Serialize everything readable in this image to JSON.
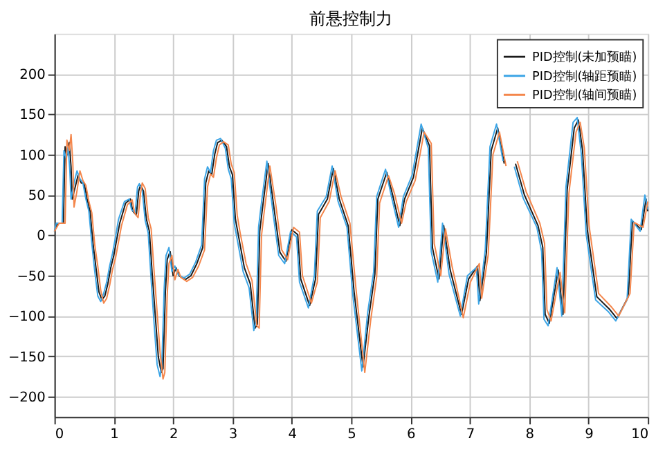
{
  "chart_data": {
    "type": "line",
    "title": "前悬控制力",
    "xlim": [
      0,
      10
    ],
    "ylim": [
      -225,
      250
    ],
    "xticks": [
      0,
      1,
      2,
      3,
      4,
      5,
      6,
      7,
      8,
      9,
      10
    ],
    "yticks": [
      -200,
      -150,
      -100,
      -50,
      0,
      50,
      100,
      150,
      200
    ],
    "grid": true,
    "legend": "top right",
    "line_style": "solid",
    "marker": "none",
    "series": [
      {
        "name": "PID控制(未加预瞄)",
        "color": "#1a1a1a",
        "x": [
          0,
          0.05,
          0.15,
          0.18,
          0.22,
          0.25,
          0.28,
          0.3,
          0.35,
          0.4,
          0.45,
          0.5,
          0.55,
          0.6,
          0.65,
          0.7,
          0.75,
          0.8,
          0.85,
          0.9,
          0.95,
          1.0,
          1.05,
          1.1,
          1.2,
          1.28,
          1.32,
          1.38,
          1.42,
          1.45,
          1.5,
          1.55,
          1.6,
          1.65,
          1.7,
          1.75,
          1.8,
          1.83,
          1.87,
          1.9,
          1.95,
          2.0,
          2.05,
          2.1,
          2.2,
          2.3,
          2.4,
          2.5,
          2.55,
          2.6,
          2.65,
          2.7,
          2.75,
          2.82,
          2.9,
          2.95,
          3.0,
          3.05,
          3.1,
          3.2,
          3.3,
          3.38,
          3.42,
          3.46,
          3.5,
          3.6,
          3.7,
          3.8,
          3.9,
          4.0,
          4.1,
          4.15,
          4.3,
          4.4,
          4.45,
          4.6,
          4.7,
          4.8,
          4.95,
          5.05,
          5.2,
          5.3,
          5.4,
          5.45,
          5.6,
          5.7,
          5.82,
          5.9,
          6.05,
          6.2,
          6.32,
          6.37,
          6.48,
          6.56,
          6.67,
          6.86,
          6.98,
          7.13,
          7.17,
          7.28,
          7.36,
          7.47,
          7.58,
          7.66,
          7.7,
          7.77,
          7.92,
          8.15,
          8.23,
          8.27,
          8.34,
          8.49,
          8.57,
          8.64,
          8.76,
          8.83,
          8.9,
          8.98,
          9.14,
          9.36,
          9.48,
          9.67,
          9.74,
          9.89,
          9.97,
          10
        ],
        "values": [
          5,
          15,
          15,
          110,
          100,
          115,
          85,
          45,
          60,
          75,
          65,
          65,
          45,
          30,
          -10,
          -40,
          -70,
          -80,
          -75,
          -60,
          -40,
          -25,
          -5,
          15,
          40,
          45,
          30,
          25,
          55,
          62,
          55,
          20,
          5,
          -50,
          -100,
          -150,
          -170,
          -165,
          -70,
          -30,
          -20,
          -50,
          -40,
          -50,
          -55,
          -50,
          -35,
          -15,
          65,
          80,
          75,
          100,
          115,
          118,
          110,
          85,
          75,
          20,
          0,
          -40,
          -60,
          -115,
          -110,
          5,
          30,
          89,
          34,
          -21,
          -32,
          7,
          1,
          -54,
          -87,
          -54,
          26,
          45,
          83,
          45,
          12,
          -70,
          -163,
          -100,
          -48,
          45,
          78,
          50,
          12,
          45,
          72,
          133,
          111,
          -15,
          -54,
          12,
          -43,
          -98,
          -54,
          -38,
          -81,
          -21,
          105,
          133,
          89,
          null,
          null,
          89,
          50,
          12,
          -15,
          -98,
          -109,
          -43,
          -98,
          56,
          133,
          143,
          105,
          7,
          -76,
          -92,
          -103,
          -76,
          18,
          7,
          45,
          30
        ]
      },
      {
        "name": "PID控制(轴距预瞄)",
        "color": "#3ca5e6",
        "x": [
          0,
          0.03,
          0.13,
          0.16,
          0.2,
          0.23,
          0.26,
          0.28,
          0.33,
          0.38,
          0.43,
          0.48,
          0.53,
          0.58,
          0.63,
          0.68,
          0.73,
          0.78,
          0.83,
          0.88,
          0.93,
          0.98,
          1.03,
          1.08,
          1.18,
          1.26,
          1.3,
          1.36,
          1.4,
          1.43,
          1.48,
          1.53,
          1.58,
          1.63,
          1.68,
          1.73,
          1.78,
          1.81,
          1.85,
          1.88,
          1.93,
          1.98,
          2.03,
          2.08,
          2.18,
          2.28,
          2.38,
          2.48,
          2.53,
          2.58,
          2.63,
          2.68,
          2.73,
          2.8,
          2.88,
          2.93,
          2.98,
          3.03,
          3.08,
          3.18,
          3.28,
          3.36,
          3.4,
          3.44,
          3.48,
          3.58,
          3.68,
          3.78,
          3.88,
          3.98,
          4.08,
          4.13,
          4.28,
          4.38,
          4.43,
          4.58,
          4.68,
          4.78,
          4.93,
          5.03,
          5.18,
          5.28,
          5.38,
          5.43,
          5.58,
          5.68,
          5.8,
          5.88,
          6.03,
          6.18,
          6.3,
          6.35,
          6.46,
          6.54,
          6.65,
          6.84,
          6.96,
          7.11,
          7.15,
          7.26,
          7.34,
          7.45,
          7.56,
          7.64,
          7.68,
          7.75,
          7.9,
          8.13,
          8.21,
          8.25,
          8.32,
          8.47,
          8.55,
          8.62,
          8.74,
          8.81,
          8.88,
          8.96,
          9.12,
          9.34,
          9.46,
          9.65,
          9.72,
          9.87,
          9.95,
          10
        ],
        "values": [
          5,
          15,
          15,
          105,
          95,
          110,
          80,
          45,
          65,
          80,
          70,
          65,
          45,
          30,
          -10,
          -45,
          -75,
          -82,
          -72,
          -58,
          -38,
          -22,
          -2,
          20,
          42,
          45,
          32,
          28,
          60,
          64,
          55,
          18,
          3,
          -55,
          -110,
          -160,
          -175,
          -160,
          -65,
          -25,
          -15,
          -45,
          -38,
          -48,
          -53,
          -48,
          -33,
          -12,
          70,
          85,
          78,
          105,
          118,
          120,
          108,
          82,
          70,
          15,
          -5,
          -45,
          -65,
          -118,
          -105,
          10,
          35,
          92,
          30,
          -25,
          -35,
          5,
          -2,
          -58,
          -90,
          -50,
          30,
          48,
          86,
          42,
          10,
          -75,
          -168,
          -95,
          -45,
          48,
          82,
          48,
          10,
          48,
          75,
          138,
          108,
          -20,
          -58,
          15,
          -48,
          -100,
          -50,
          -40,
          -85,
          -18,
          110,
          138,
          92,
          null,
          null,
          85,
          46,
          10,
          -20,
          -104,
          -112,
          -40,
          -100,
          60,
          140,
          146,
          100,
          2,
          -80,
          -95,
          -106,
          -80,
          20,
          5,
          50,
          32
        ]
      },
      {
        "name": "PID控制(轴间预瞄)",
        "color": "#f4864b",
        "x": [
          0,
          0.08,
          0.18,
          0.21,
          0.25,
          0.28,
          0.31,
          0.33,
          0.38,
          0.43,
          0.48,
          0.53,
          0.58,
          0.63,
          0.68,
          0.73,
          0.78,
          0.83,
          0.88,
          0.93,
          0.98,
          1.03,
          1.08,
          1.13,
          1.23,
          1.31,
          1.35,
          1.41,
          1.45,
          1.48,
          1.53,
          1.58,
          1.63,
          1.68,
          1.73,
          1.78,
          1.83,
          1.86,
          1.9,
          1.93,
          1.98,
          2.03,
          2.08,
          2.13,
          2.23,
          2.33,
          2.43,
          2.53,
          2.58,
          2.63,
          2.68,
          2.73,
          2.78,
          2.85,
          2.93,
          2.98,
          3.03,
          3.08,
          3.13,
          3.23,
          3.33,
          3.41,
          3.45,
          3.49,
          3.53,
          3.63,
          3.73,
          3.83,
          3.93,
          4.03,
          4.13,
          4.18,
          4.33,
          4.43,
          4.48,
          4.63,
          4.73,
          4.83,
          4.98,
          5.08,
          5.23,
          5.33,
          5.43,
          5.48,
          5.63,
          5.73,
          5.85,
          5.93,
          6.08,
          6.23,
          6.35,
          6.4,
          6.51,
          6.59,
          6.7,
          6.89,
          7.01,
          7.16,
          7.2,
          7.31,
          7.39,
          7.5,
          7.61,
          7.69,
          7.73,
          7.8,
          7.95,
          8.18,
          8.26,
          8.3,
          8.37,
          8.52,
          8.6,
          8.67,
          8.79,
          8.86,
          8.93,
          9.01,
          9.17,
          9.39,
          9.51,
          9.7,
          9.77,
          9.92,
          10
        ],
        "values": [
          5,
          15,
          15,
          118,
          105,
          125,
          90,
          35,
          55,
          80,
          68,
          62,
          42,
          28,
          -12,
          -38,
          -68,
          -84,
          -78,
          -62,
          -42,
          -28,
          -8,
          12,
          38,
          44,
          28,
          22,
          52,
          65,
          58,
          22,
          8,
          -45,
          -95,
          -145,
          -178,
          -170,
          -75,
          -35,
          -25,
          -55,
          -42,
          -52,
          -57,
          -52,
          -38,
          -18,
          60,
          76,
          72,
          96,
          112,
          116,
          112,
          88,
          78,
          25,
          3,
          -35,
          -56,
          -112,
          -115,
          0,
          26,
          86,
          38,
          -18,
          -30,
          10,
          4,
          -50,
          -84,
          -58,
          22,
          42,
          80,
          48,
          15,
          -65,
          -170,
          -105,
          -52,
          40,
          74,
          52,
          15,
          42,
          68,
          128,
          114,
          -10,
          -50,
          8,
          -38,
          -102,
          -58,
          -35,
          -78,
          -24,
          100,
          128,
          86,
          null,
          null,
          92,
          54,
          15,
          -10,
          -92,
          -106,
          -46,
          -96,
          52,
          128,
          140,
          108,
          12,
          -72,
          -89,
          -100,
          -72,
          16,
          10,
          42
        ]
      }
    ]
  }
}
